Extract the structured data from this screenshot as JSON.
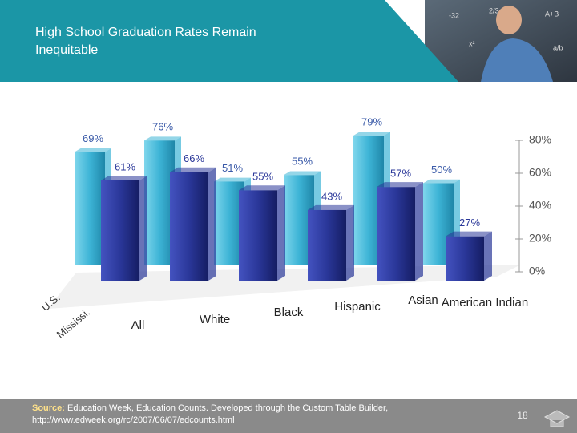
{
  "chart_data": {
    "type": "bar3d",
    "title": "High School Graduation Rates Remain Inequitable",
    "categories": [
      "All",
      "White",
      "Black",
      "Hispanic",
      "Asian",
      "American Indian"
    ],
    "series": [
      {
        "name": "U.S.",
        "color": "#3db4d6",
        "values": [
          69,
          76,
          51,
          55,
          79,
          50
        ],
        "value_labels": [
          "69%",
          "76%",
          "51%",
          "55%",
          "79%",
          "50%"
        ]
      },
      {
        "name": "Mississi.",
        "color": "#2a3799",
        "values": [
          61,
          66,
          55,
          43,
          57,
          27
        ],
        "value_labels": [
          "61%",
          "66%",
          "55%",
          "43%",
          "57%",
          "27%"
        ]
      }
    ],
    "ylim": [
      0,
      80
    ],
    "yticks": [
      {
        "value": 0,
        "label": "0%"
      },
      {
        "value": 20,
        "label": "20%"
      },
      {
        "value": 40,
        "label": "40%"
      },
      {
        "value": 60,
        "label": "60%"
      },
      {
        "value": 80,
        "label": "80%"
      }
    ],
    "grid": false
  },
  "footer": {
    "source_label": "Source:",
    "source_text": "Education Week, Education Counts. Developed through the Custom Table Builder, http://www.edweek.org/rc/2007/06/07/edcounts.html",
    "page_number": 18
  }
}
